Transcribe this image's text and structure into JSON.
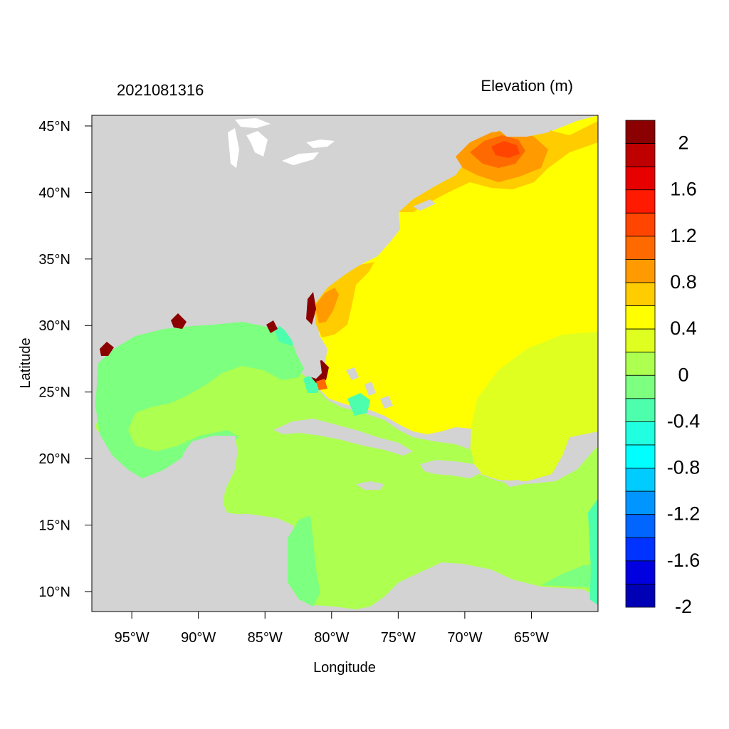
{
  "figure": {
    "left_title": "2021081316",
    "right_title": "Elevation (m)",
    "x_axis_label": "Longitude",
    "y_axis_label": "Latitude"
  },
  "axes": {
    "lon_min": -98,
    "lon_max": -60,
    "lat_min": 8.5,
    "lat_max": 45.8,
    "x_ticks": [
      {
        "lon": -95,
        "label": "95°W"
      },
      {
        "lon": -90,
        "label": "90°W"
      },
      {
        "lon": -85,
        "label": "85°W"
      },
      {
        "lon": -80,
        "label": "80°W"
      },
      {
        "lon": -75,
        "label": "75°W"
      },
      {
        "lon": -70,
        "label": "70°W"
      },
      {
        "lon": -65,
        "label": "65°W"
      }
    ],
    "y_ticks": [
      {
        "lat": 10,
        "label": "10°N"
      },
      {
        "lat": 15,
        "label": "15°N"
      },
      {
        "lat": 20,
        "label": "20°N"
      },
      {
        "lat": 25,
        "label": "25°N"
      },
      {
        "lat": 30,
        "label": "30°N"
      },
      {
        "lat": 35,
        "label": "35°N"
      },
      {
        "lat": 40,
        "label": "40°N"
      },
      {
        "lat": 45,
        "label": "45°N"
      }
    ]
  },
  "colorbar": {
    "colors_top_to_bottom": [
      "#8b0000",
      "#bf0000",
      "#e60000",
      "#ff1a00",
      "#ff4500",
      "#ff6a00",
      "#ff9a00",
      "#ffcc00",
      "#ffff00",
      "#dfff20",
      "#adff50",
      "#7dff80",
      "#4dffad",
      "#20ffe0",
      "#00ffff",
      "#00ccff",
      "#0095ff",
      "#0066ff",
      "#0033ff",
      "#0000e0",
      "#0000b4"
    ],
    "labels": [
      {
        "value": "2",
        "level": 10
      },
      {
        "value": "1.6",
        "level": 8
      },
      {
        "value": "1.2",
        "level": 6
      },
      {
        "value": "0.8",
        "level": 4
      },
      {
        "value": "0.4",
        "level": 2
      },
      {
        "value": "0",
        "level": 0
      },
      {
        "value": "-0.4",
        "level": -2
      },
      {
        "value": "-0.8",
        "level": -4
      },
      {
        "value": "-1.2",
        "level": -6
      },
      {
        "value": "-1.6",
        "level": -8
      },
      {
        "value": "-2",
        "level": -10
      }
    ]
  },
  "map_colors": {
    "land": "#d3d3d3",
    "atlantic_high": "#ffff00",
    "atlantic_orange": "#ffcc00",
    "maine_orange": "#ff9a00",
    "maine_core": "#ff6a00",
    "east_atlantic": "#dfff20",
    "caribbean": "#adff50",
    "gulf": "#7dff80",
    "cyan": "#4dffad",
    "dark_red": "#8b0000"
  }
}
